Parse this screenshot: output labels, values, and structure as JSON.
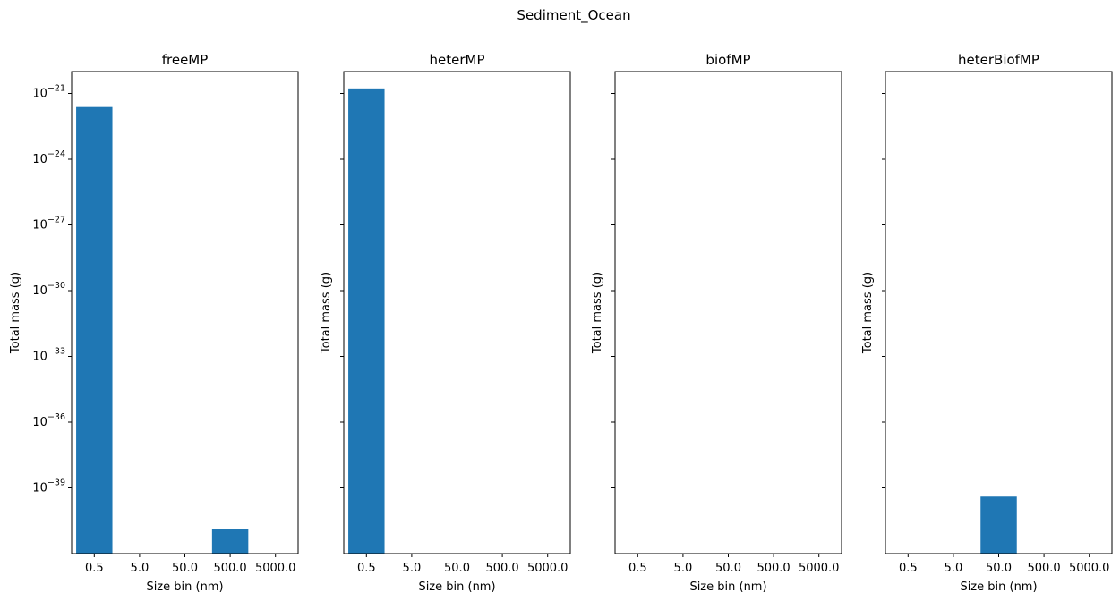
{
  "suptitle": "Sediment_Ocean",
  "chart_data": {
    "type": "bar",
    "title": "Sediment_Ocean",
    "xlabel": "Size bin (nm)",
    "ylabel": "Total mass (g)",
    "categories": [
      "0.5",
      "5.0",
      "50.0",
      "500.0",
      "5000.0"
    ],
    "y_scale": "log",
    "ylim": [
      1e-42,
      1e-20
    ],
    "shared_y": true,
    "ytick_labels": [
      "10^-39",
      "10^-36",
      "10^-33",
      "10^-30",
      "10^-27",
      "10^-24",
      "10^-21"
    ],
    "ytick_exponents": [
      -39,
      -36,
      -33,
      -30,
      -27,
      -24,
      -21
    ],
    "bar_color": "#1f77b4",
    "grid": false,
    "panels": [
      {
        "title": "freeMP",
        "values": [
          2.4e-22,
          null,
          null,
          1.3e-41,
          null
        ]
      },
      {
        "title": "heterMP",
        "values": [
          1.7e-21,
          null,
          null,
          null,
          null
        ]
      },
      {
        "title": "biofMP",
        "values": [
          null,
          null,
          null,
          null,
          null
        ]
      },
      {
        "title": "heterBiofMP",
        "values": [
          null,
          null,
          4e-40,
          null,
          null
        ]
      }
    ]
  }
}
